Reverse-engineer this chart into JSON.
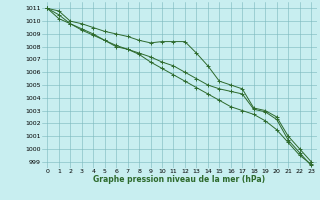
{
  "title": "Graphe pression niveau de la mer (hPa)",
  "background_color": "#c8eef0",
  "grid_color": "#7ab8bc",
  "line_color": "#2d6a2d",
  "xlim": [
    -0.5,
    23.5
  ],
  "ylim": [
    998.5,
    1011.5
  ],
  "yticks": [
    999,
    1000,
    1001,
    1002,
    1003,
    1004,
    1005,
    1006,
    1007,
    1008,
    1009,
    1010,
    1011
  ],
  "xticks": [
    0,
    1,
    2,
    3,
    4,
    5,
    6,
    7,
    8,
    9,
    10,
    11,
    12,
    13,
    14,
    15,
    16,
    17,
    18,
    19,
    20,
    21,
    22,
    23
  ],
  "series1": [
    1011.0,
    1010.8,
    1010.0,
    1009.8,
    1009.5,
    1009.2,
    1009.0,
    1008.8,
    1008.5,
    1008.3,
    1008.4,
    1008.4,
    1008.4,
    1007.5,
    1006.5,
    1005.3,
    1005.0,
    1004.7,
    1003.2,
    1003.0,
    1002.5,
    1001.0,
    1000.0,
    999.0
  ],
  "series2": [
    1011.0,
    1010.5,
    1009.8,
    1009.3,
    1008.9,
    1008.5,
    1008.0,
    1007.8,
    1007.5,
    1007.2,
    1006.8,
    1006.5,
    1006.0,
    1005.5,
    1005.0,
    1004.7,
    1004.5,
    1004.3,
    1003.1,
    1002.9,
    1002.3,
    1000.7,
    999.7,
    998.7
  ],
  "series3": [
    1011.0,
    1010.2,
    1009.8,
    1009.4,
    1009.0,
    1008.5,
    1008.1,
    1007.8,
    1007.4,
    1006.8,
    1006.3,
    1005.8,
    1005.3,
    1004.8,
    1004.3,
    1003.8,
    1003.3,
    1003.0,
    1002.7,
    1002.2,
    1001.5,
    1000.5,
    999.5,
    998.8
  ]
}
